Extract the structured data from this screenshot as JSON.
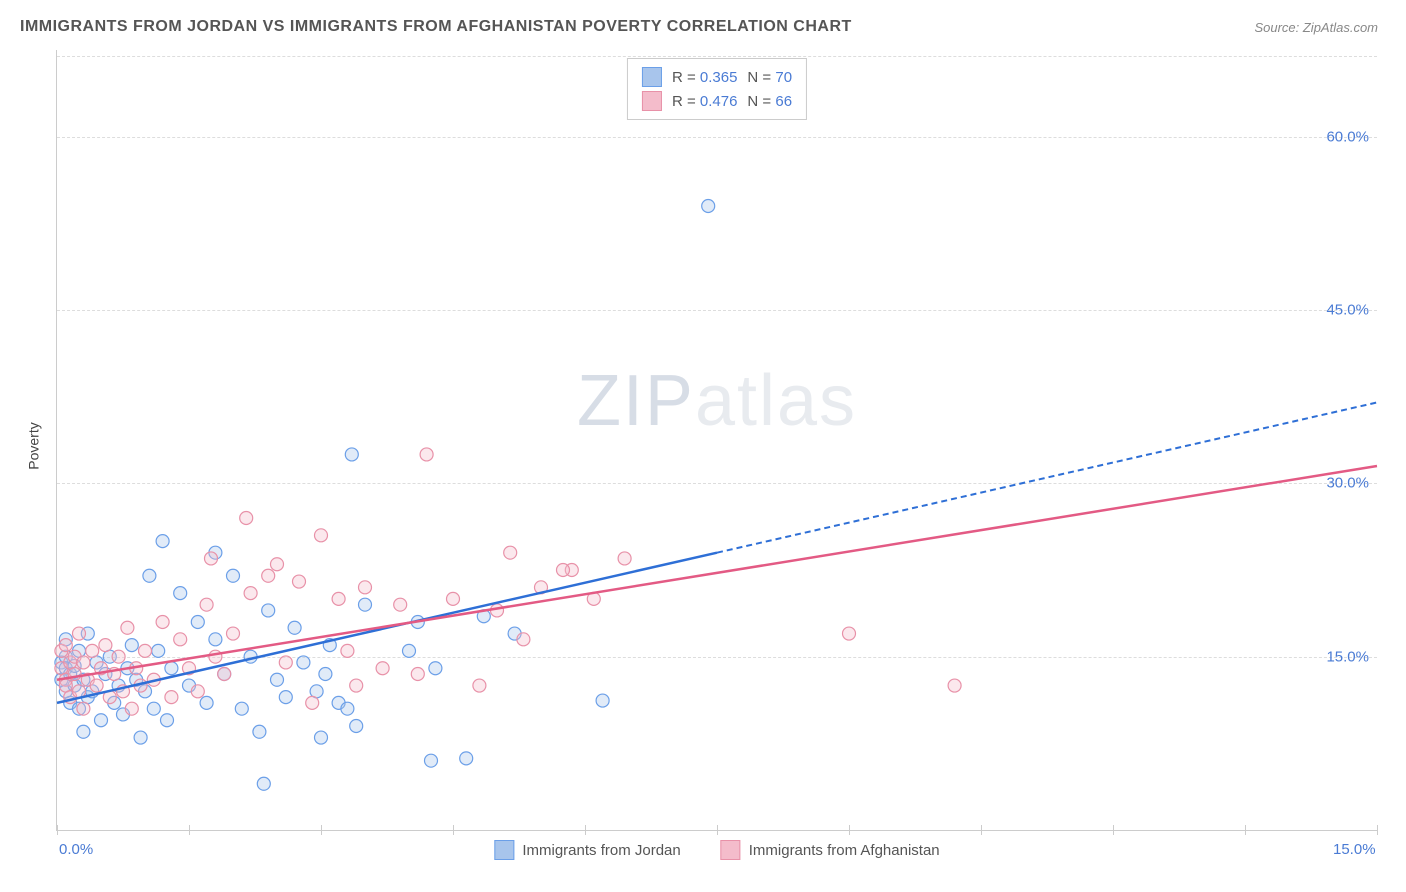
{
  "title": "IMMIGRANTS FROM JORDAN VS IMMIGRANTS FROM AFGHANISTAN POVERTY CORRELATION CHART",
  "source": "Source: ZipAtlas.com",
  "watermark_a": "ZIP",
  "watermark_b": "atlas",
  "ylabel": "Poverty",
  "chart": {
    "type": "scatter",
    "background_color": "#ffffff",
    "grid_color": "#dddddd",
    "axis_color": "#cccccc",
    "tick_color": "#4a7bd4",
    "xlim": [
      0,
      15
    ],
    "ylim": [
      0,
      67.5
    ],
    "ytick_step": 15,
    "yticks": [
      15,
      30,
      45,
      60
    ],
    "ytick_labels": [
      "15.0%",
      "30.0%",
      "45.0%",
      "60.0%"
    ],
    "xticks_pos": [
      0,
      15
    ],
    "xtick_labels": [
      "0.0%",
      "15.0%"
    ],
    "xtick_marks": [
      0,
      1.5,
      3,
      4.5,
      6,
      7.5,
      9,
      10.5,
      12,
      13.5,
      15
    ],
    "tick_fontsize": 15,
    "label_fontsize": 14,
    "title_fontsize": 16,
    "marker_radius": 6.5,
    "marker_stroke_width": 1.2,
    "marker_fill_opacity": 0.35,
    "line_width": 2.5,
    "dash_pattern": "6,4",
    "series": [
      {
        "name": "Immigrants from Jordan",
        "color_stroke": "#6b9fe8",
        "color_fill": "#a8c5ec",
        "trend_color": "#2e6fd6",
        "R": "0.365",
        "N": "70",
        "trend_start": [
          0,
          11
        ],
        "trend_solid_end": [
          7.5,
          24
        ],
        "trend_dash_end": [
          15,
          37
        ],
        "points": [
          [
            0.05,
            13
          ],
          [
            0.05,
            14.5
          ],
          [
            0.1,
            12
          ],
          [
            0.1,
            15
          ],
          [
            0.1,
            16.5
          ],
          [
            0.1,
            14
          ],
          [
            0.15,
            13.5
          ],
          [
            0.15,
            11
          ],
          [
            0.2,
            12.5
          ],
          [
            0.2,
            14.2
          ],
          [
            0.25,
            10.5
          ],
          [
            0.25,
            15.5
          ],
          [
            0.3,
            13
          ],
          [
            0.3,
            8.5
          ],
          [
            0.35,
            11.5
          ],
          [
            0.35,
            17
          ],
          [
            0.4,
            12
          ],
          [
            0.45,
            14.5
          ],
          [
            0.5,
            9.5
          ],
          [
            0.55,
            13.5
          ],
          [
            0.6,
            15
          ],
          [
            0.65,
            11
          ],
          [
            0.7,
            12.5
          ],
          [
            0.75,
            10
          ],
          [
            0.8,
            14
          ],
          [
            0.85,
            16
          ],
          [
            0.9,
            13
          ],
          [
            0.95,
            8
          ],
          [
            1.0,
            12
          ],
          [
            1.05,
            22
          ],
          [
            1.1,
            10.5
          ],
          [
            1.15,
            15.5
          ],
          [
            1.2,
            25
          ],
          [
            1.25,
            9.5
          ],
          [
            1.3,
            14
          ],
          [
            1.4,
            20.5
          ],
          [
            1.5,
            12.5
          ],
          [
            1.6,
            18
          ],
          [
            1.7,
            11
          ],
          [
            1.8,
            16.5
          ],
          [
            1.8,
            24
          ],
          [
            1.9,
            13.5
          ],
          [
            2.0,
            22
          ],
          [
            2.1,
            10.5
          ],
          [
            2.2,
            15
          ],
          [
            2.3,
            8.5
          ],
          [
            2.35,
            4
          ],
          [
            2.4,
            19
          ],
          [
            2.5,
            13
          ],
          [
            2.6,
            11.5
          ],
          [
            2.7,
            17.5
          ],
          [
            2.8,
            14.5
          ],
          [
            2.95,
            12
          ],
          [
            3.0,
            8
          ],
          [
            3.05,
            13.5
          ],
          [
            3.1,
            16
          ],
          [
            3.2,
            11
          ],
          [
            3.3,
            10.5
          ],
          [
            3.35,
            32.5
          ],
          [
            3.4,
            9
          ],
          [
            3.5,
            19.5
          ],
          [
            4.0,
            15.5
          ],
          [
            4.1,
            18
          ],
          [
            4.25,
            6
          ],
          [
            4.3,
            14
          ],
          [
            4.65,
            6.2
          ],
          [
            4.85,
            18.5
          ],
          [
            5.2,
            17
          ],
          [
            6.2,
            11.2
          ],
          [
            7.4,
            54
          ]
        ]
      },
      {
        "name": "Immigrants from Afghanistan",
        "color_stroke": "#e891a8",
        "color_fill": "#f4bccb",
        "trend_color": "#e35a84",
        "R": "0.476",
        "N": "66",
        "trend_start": [
          0,
          13
        ],
        "trend_solid_end": [
          15,
          31.5
        ],
        "trend_dash_end": null,
        "points": [
          [
            0.05,
            14
          ],
          [
            0.05,
            15.5
          ],
          [
            0.1,
            13
          ],
          [
            0.1,
            16
          ],
          [
            0.1,
            12.5
          ],
          [
            0.15,
            14.5
          ],
          [
            0.15,
            11.5
          ],
          [
            0.2,
            13.5
          ],
          [
            0.2,
            15
          ],
          [
            0.25,
            12
          ],
          [
            0.25,
            17
          ],
          [
            0.3,
            10.5
          ],
          [
            0.3,
            14.5
          ],
          [
            0.35,
            13
          ],
          [
            0.4,
            15.5
          ],
          [
            0.45,
            12.5
          ],
          [
            0.5,
            14
          ],
          [
            0.55,
            16
          ],
          [
            0.6,
            11.5
          ],
          [
            0.65,
            13.5
          ],
          [
            0.7,
            15
          ],
          [
            0.75,
            12
          ],
          [
            0.8,
            17.5
          ],
          [
            0.85,
            10.5
          ],
          [
            0.9,
            14
          ],
          [
            0.95,
            12.5
          ],
          [
            1.0,
            15.5
          ],
          [
            1.1,
            13
          ],
          [
            1.2,
            18
          ],
          [
            1.3,
            11.5
          ],
          [
            1.4,
            16.5
          ],
          [
            1.5,
            14
          ],
          [
            1.6,
            12
          ],
          [
            1.7,
            19.5
          ],
          [
            1.75,
            23.5
          ],
          [
            1.8,
            15
          ],
          [
            1.9,
            13.5
          ],
          [
            2.0,
            17
          ],
          [
            2.15,
            27
          ],
          [
            2.2,
            20.5
          ],
          [
            2.4,
            22
          ],
          [
            2.5,
            23
          ],
          [
            2.6,
            14.5
          ],
          [
            2.75,
            21.5
          ],
          [
            2.9,
            11
          ],
          [
            3.0,
            25.5
          ],
          [
            3.2,
            20
          ],
          [
            3.3,
            15.5
          ],
          [
            3.4,
            12.5
          ],
          [
            3.5,
            21
          ],
          [
            3.7,
            14
          ],
          [
            3.9,
            19.5
          ],
          [
            4.1,
            13.5
          ],
          [
            4.2,
            32.5
          ],
          [
            4.5,
            20
          ],
          [
            4.8,
            12.5
          ],
          [
            5.0,
            19
          ],
          [
            5.15,
            24
          ],
          [
            5.3,
            16.5
          ],
          [
            5.5,
            21
          ],
          [
            5.85,
            22.5
          ],
          [
            5.75,
            22.5
          ],
          [
            6.1,
            20
          ],
          [
            6.45,
            23.5
          ],
          [
            9.0,
            17
          ],
          [
            10.2,
            12.5
          ]
        ]
      }
    ]
  },
  "legend_top": {
    "r_label": "R =",
    "n_label": "N ="
  }
}
